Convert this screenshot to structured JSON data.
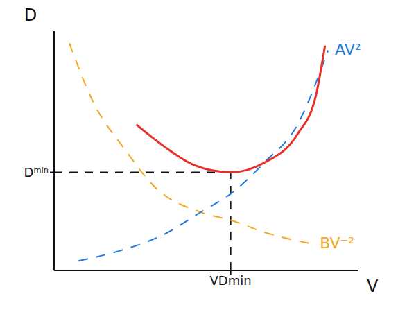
{
  "chart_data": {
    "type": "line",
    "x_label": "V",
    "y_label": "D",
    "xlim": [
      0,
      10
    ],
    "ylim": [
      0,
      10
    ],
    "xticks": [
      {
        "value": 5.8,
        "label": "VDmin"
      }
    ],
    "yticks": [
      {
        "value": 4.1,
        "label": "Dᵐⁱⁿ"
      }
    ],
    "series": [
      {
        "name": "BV⁻²",
        "color": "#f5a623",
        "line_style": "dashed",
        "x": [
          0.5,
          1.3,
          2.3,
          3.3,
          4.9,
          5.8,
          6.9,
          8.5
        ],
        "values": [
          9.5,
          7.0,
          5.1,
          3.5,
          2.4,
          2.1,
          1.6,
          1.1
        ]
      },
      {
        "name": "AV²",
        "color": "#1e7be0",
        "line_style": "dashed",
        "x": [
          0.8,
          2.1,
          3.6,
          4.9,
          5.8,
          6.9,
          8.0,
          9.0
        ],
        "values": [
          0.4,
          0.8,
          1.5,
          2.5,
          3.2,
          4.5,
          6.1,
          9.2
        ]
      },
      {
        "color": "#e8302a",
        "line_style": "solid",
        "x": [
          2.7,
          3.6,
          4.6,
          5.8,
          6.9,
          8.0,
          8.6,
          8.9
        ],
        "values": [
          6.1,
          5.2,
          4.4,
          4.1,
          4.5,
          5.7,
          7.3,
          9.4
        ]
      }
    ]
  }
}
